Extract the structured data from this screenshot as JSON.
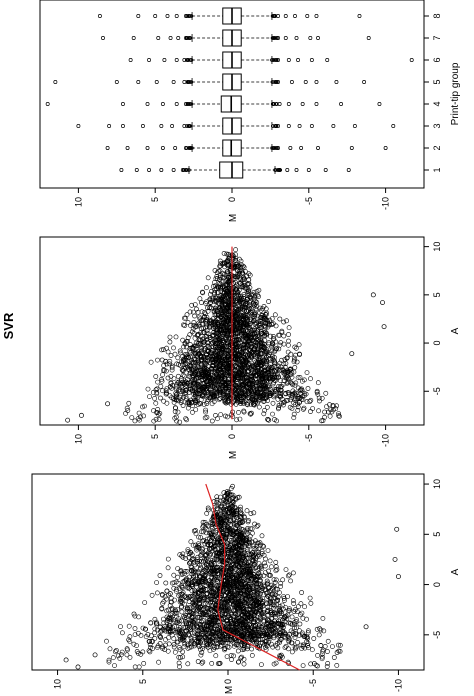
{
  "figure": {
    "title": "SVR",
    "orientation_note": "Panels are rotated 90° counter-clockwise"
  },
  "chart_data": [
    {
      "id": "ma-top",
      "type": "boxplot",
      "xlabel": "Print-tip group",
      "ylabel": "M",
      "categories": [
        "1",
        "2",
        "3",
        "4",
        "5",
        "6",
        "7",
        "8"
      ],
      "ylim": [
        -12.5,
        12.5
      ],
      "yticks": [
        -10,
        -5,
        0,
        5,
        10
      ],
      "yticklabels": [
        "-10",
        "-5",
        "0",
        "5",
        "10"
      ],
      "boxes": [
        {
          "group": "1",
          "median": 0.0,
          "q1": -0.7,
          "q3": 0.8,
          "wl": -2.8,
          "wh": 2.8,
          "out_low": [
            -3.1,
            -3.6,
            -4.2,
            -5.0,
            -6.1,
            -7.6
          ],
          "out_high": [
            3.2,
            3.8,
            4.6,
            5.4,
            6.2,
            7.2
          ]
        },
        {
          "group": "2",
          "median": 0.05,
          "q1": -0.6,
          "q3": 0.6,
          "wl": -2.6,
          "wh": 2.6,
          "out_low": [
            -3.0,
            -3.8,
            -4.5,
            -5.6,
            -7.8,
            -10.0
          ],
          "out_high": [
            3.0,
            3.7,
            4.5,
            5.5,
            6.8,
            8.1
          ]
        },
        {
          "group": "3",
          "median": 0.0,
          "q1": -0.6,
          "q3": 0.6,
          "wl": -2.6,
          "wh": 2.6,
          "out_low": [
            -3.0,
            -3.7,
            -4.4,
            -5.2,
            -6.6,
            -8.0,
            -10.5
          ],
          "out_high": [
            3.1,
            3.9,
            4.6,
            5.8,
            7.1,
            8.0,
            10.0
          ]
        },
        {
          "group": "4",
          "median": 0.05,
          "q1": -0.6,
          "q3": 0.7,
          "wl": -2.6,
          "wh": 2.6,
          "out_low": [
            -3.1,
            -3.7,
            -4.6,
            -5.5,
            -7.1,
            -9.6
          ],
          "out_high": [
            3.0,
            3.6,
            4.5,
            5.5,
            7.1,
            12.0
          ]
        },
        {
          "group": "5",
          "median": 0.0,
          "q1": -0.6,
          "q3": 0.6,
          "wl": -2.6,
          "wh": 2.6,
          "out_low": [
            -3.0,
            -3.9,
            -4.8,
            -5.5,
            -6.8,
            -8.6
          ],
          "out_high": [
            3.1,
            3.8,
            4.9,
            6.1,
            7.5,
            11.5
          ]
        },
        {
          "group": "6",
          "median": 0.0,
          "q1": -0.6,
          "q3": 0.6,
          "wl": -2.6,
          "wh": 2.6,
          "out_low": [
            -3.0,
            -3.7,
            -4.3,
            -5.2,
            -6.2,
            -11.7
          ],
          "out_high": [
            3.1,
            3.6,
            4.4,
            5.4,
            6.6
          ]
        },
        {
          "group": "7",
          "median": 0.0,
          "q1": -0.6,
          "q3": 0.6,
          "wl": -2.6,
          "wh": 2.6,
          "out_low": [
            -3.0,
            -3.5,
            -4.2,
            -5.1,
            -5.6,
            -8.9
          ],
          "out_high": [
            3.0,
            3.5,
            4.0,
            4.8,
            6.4,
            8.4
          ]
        },
        {
          "group": "8",
          "median": 0.0,
          "q1": -0.6,
          "q3": 0.6,
          "wl": -2.6,
          "wh": 2.6,
          "out_low": [
            -3.0,
            -3.5,
            -4.1,
            -4.9,
            -5.5,
            -8.3
          ],
          "out_high": [
            3.0,
            3.6,
            4.2,
            5.0,
            6.1,
            8.6
          ]
        }
      ]
    },
    {
      "id": "ma-middle",
      "type": "scatter",
      "xlabel": "A",
      "ylabel": "M",
      "xlim": [
        -8.5,
        11
      ],
      "ylim": [
        -12.5,
        12.5
      ],
      "xticks": [
        -5,
        0,
        5,
        10
      ],
      "xticklabels": [
        "-5",
        "0",
        "5",
        "10"
      ],
      "yticks": [
        -10,
        -5,
        0,
        5,
        10
      ],
      "yticklabels": [
        "-10",
        "-5",
        "0",
        "5",
        "10"
      ],
      "cloud": {
        "apex_a": 10,
        "base_a": -6,
        "half_width_at_base": 7,
        "n_points": 6000
      },
      "outliers": [
        [
          -7.5,
          9.8
        ],
        [
          -6.3,
          8.1
        ],
        [
          -8.0,
          10.7
        ],
        [
          1.7,
          -9.9
        ],
        [
          5.0,
          -9.2
        ],
        [
          4.2,
          -9.8
        ],
        [
          -1.1,
          -7.8
        ]
      ],
      "fit": {
        "a": [
          -7.9,
          10
        ],
        "m": [
          0,
          0
        ],
        "color": "#dd2222"
      }
    },
    {
      "id": "ma-bottom",
      "type": "scatter",
      "xlabel": "A",
      "ylabel": "M",
      "xlim": [
        -8.5,
        11
      ],
      "ylim": [
        -11.5,
        11.5
      ],
      "xticks": [
        -5,
        0,
        5,
        10
      ],
      "xticklabels": [
        "-5",
        "0",
        "5",
        "10"
      ],
      "yticks": [
        -10,
        -5,
        0,
        5,
        10
      ],
      "yticklabels": [
        "-10",
        "-5",
        "0",
        "5",
        "10"
      ],
      "cloud": {
        "apex_a": 10,
        "base_a": -6,
        "half_width_at_base": 7,
        "n_points": 6000
      },
      "outliers": [
        [
          -7.5,
          9.5
        ],
        [
          -7.0,
          7.8
        ],
        [
          -8.2,
          8.8
        ],
        [
          5.5,
          -9.9
        ],
        [
          2.5,
          -9.8
        ],
        [
          0.8,
          -10.0
        ],
        [
          -4.2,
          -8.1
        ]
      ],
      "fit": {
        "a": [
          -8.5,
          -4.5,
          -2.5,
          0,
          2,
          4,
          6,
          8,
          10
        ],
        "m": [
          -4.2,
          0.3,
          0.6,
          0.4,
          0.2,
          0.2,
          0.7,
          0.9,
          1.3
        ],
        "color": "#dd2222"
      }
    }
  ]
}
